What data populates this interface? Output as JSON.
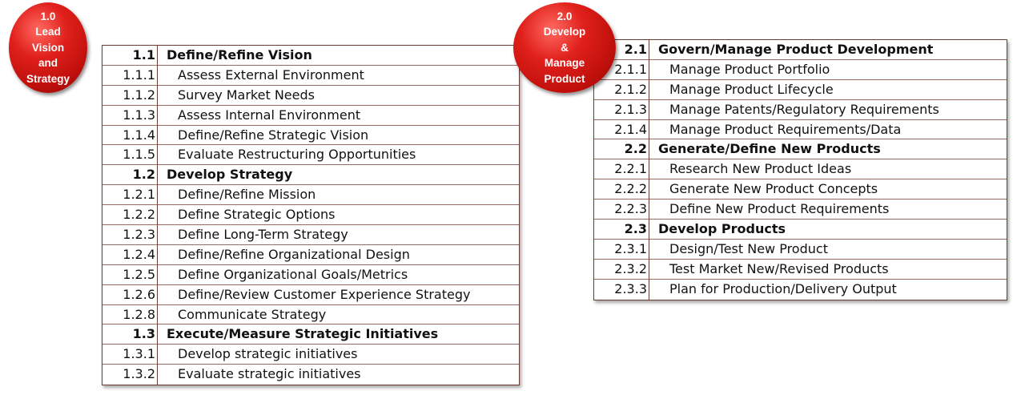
{
  "sections": [
    {
      "badge_lines": [
        "1.0",
        "Lead",
        "Vision",
        "and",
        "Strategy"
      ],
      "rows": [
        {
          "num": "1.1",
          "label": "Define/Refine Vision",
          "header": true
        },
        {
          "num": "1.1.1",
          "label": "Assess External Environment",
          "header": false
        },
        {
          "num": "1.1.2",
          "label": "Survey Market Needs",
          "header": false
        },
        {
          "num": "1.1.3",
          "label": "Assess Internal Environment",
          "header": false
        },
        {
          "num": "1.1.4",
          "label": "Define/Refine Strategic Vision",
          "header": false
        },
        {
          "num": "1.1.5",
          "label": "Evaluate Restructuring Opportunities",
          "header": false
        },
        {
          "num": "1.2",
          "label": "Develop Strategy",
          "header": true
        },
        {
          "num": "1.2.1",
          "label": "Define/Refine Mission",
          "header": false
        },
        {
          "num": "1.2.2",
          "label": "Define Strategic Options",
          "header": false
        },
        {
          "num": "1.2.3",
          "label": "Define Long-Term Strategy",
          "header": false
        },
        {
          "num": "1.2.4",
          "label": "Define/Refine Organizational Design",
          "header": false
        },
        {
          "num": "1.2.5",
          "label": "Define Organizational Goals/Metrics",
          "header": false
        },
        {
          "num": "1.2.6",
          "label": "Define/Review Customer Experience Strategy",
          "header": false
        },
        {
          "num": "1.2.8",
          "label": "Communicate Strategy",
          "header": false
        },
        {
          "num": "1.3",
          "label": "Execute/Measure Strategic Initiatives",
          "header": true
        },
        {
          "num": "1.3.1",
          "label": "Develop strategic initiatives",
          "header": false
        },
        {
          "num": "1.3.2",
          "label": "Evaluate strategic initiatives",
          "header": false
        }
      ]
    },
    {
      "badge_lines": [
        "2.0",
        "Develop",
        "&",
        "Manage",
        "Product"
      ],
      "rows": [
        {
          "num": "2.1",
          "label": "Govern/Manage Product Development",
          "header": true
        },
        {
          "num": "2.1.1",
          "label": "Manage Product Portfolio",
          "header": false
        },
        {
          "num": "2.1.2",
          "label": "Manage Product Lifecycle",
          "header": false
        },
        {
          "num": "2.1.3",
          "label": "Manage Patents/Regulatory Requirements",
          "header": false
        },
        {
          "num": "2.1.4",
          "label": "Manage Product Requirements/Data",
          "header": false
        },
        {
          "num": "2.2",
          "label": "Generate/Define New Products",
          "header": true
        },
        {
          "num": "2.2.1",
          "label": "Research New Product Ideas",
          "header": false
        },
        {
          "num": "2.2.2",
          "label": "Generate New Product Concepts",
          "header": false
        },
        {
          "num": "2.2.3",
          "label": "Define New Product Requirements",
          "header": false
        },
        {
          "num": "2.3",
          "label": "Develop Products",
          "header": true
        },
        {
          "num": "2.3.1",
          "label": "Design/Test New Product",
          "header": false
        },
        {
          "num": "2.3.2",
          "label": "Test Market New/Revised Products",
          "header": false
        },
        {
          "num": "2.3.3",
          "label": "Plan for Production/Delivery Output",
          "header": false
        }
      ]
    }
  ],
  "colors": {
    "badge": "#d0140f",
    "border": "#6b3b34",
    "row_divider": "#9a6b63"
  }
}
